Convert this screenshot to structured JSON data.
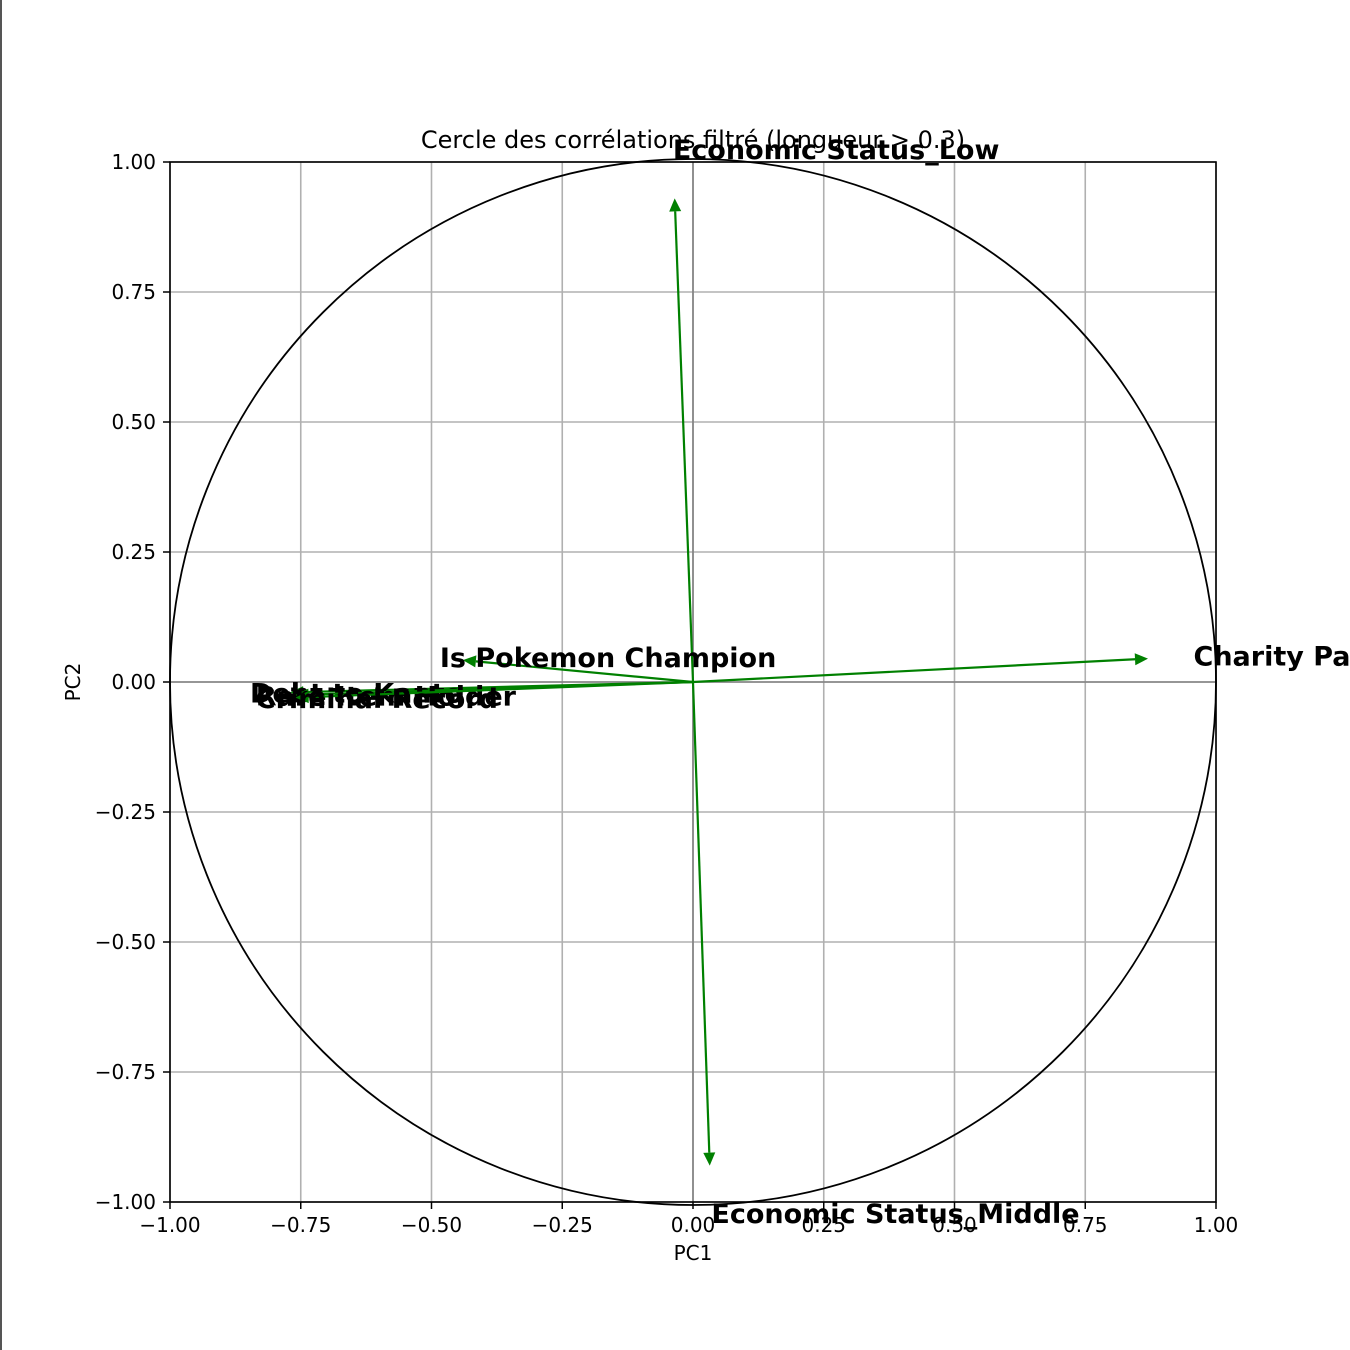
{
  "chart_data": {
    "type": "scatter",
    "title": "Cercle des corrélations filtré (longueur > 0.3)",
    "xlabel": "PC1",
    "ylabel": "PC2",
    "xlim": [
      -1.0,
      1.0
    ],
    "ylim": [
      -1.0,
      1.0
    ],
    "xticks": [
      "−1.00",
      "−0.75",
      "−0.50",
      "−0.25",
      "0.00",
      "0.25",
      "0.50",
      "0.75",
      "1.00"
    ],
    "yticks": [
      "−1.00",
      "−0.75",
      "−0.50",
      "−0.25",
      "0.00",
      "0.25",
      "0.50",
      "0.75",
      "1.00"
    ],
    "tick_values": [
      -1.0,
      -0.75,
      -0.5,
      -0.25,
      0.0,
      0.25,
      0.5,
      0.75,
      1.0
    ],
    "grid": true,
    "unit_circle": true,
    "arrow_color": "#008000",
    "vectors": [
      {
        "label": "Economic Status_Low",
        "x": -0.035,
        "y": 0.93
      },
      {
        "label": "Economic Status_Middle",
        "x": 0.032,
        "y": -0.93
      },
      {
        "label": "Charity Part",
        "x": 0.87,
        "y": 0.045
      },
      {
        "label": "Is Pokemon Champion",
        "x": -0.44,
        "y": 0.042
      },
      {
        "label": "Debt to Kanto",
        "x": -0.77,
        "y": -0.02
      },
      {
        "label": "Rare Item Holder",
        "x": -0.76,
        "y": -0.025
      },
      {
        "label": "Criminal Record",
        "x": -0.76,
        "y": -0.03
      }
    ]
  }
}
